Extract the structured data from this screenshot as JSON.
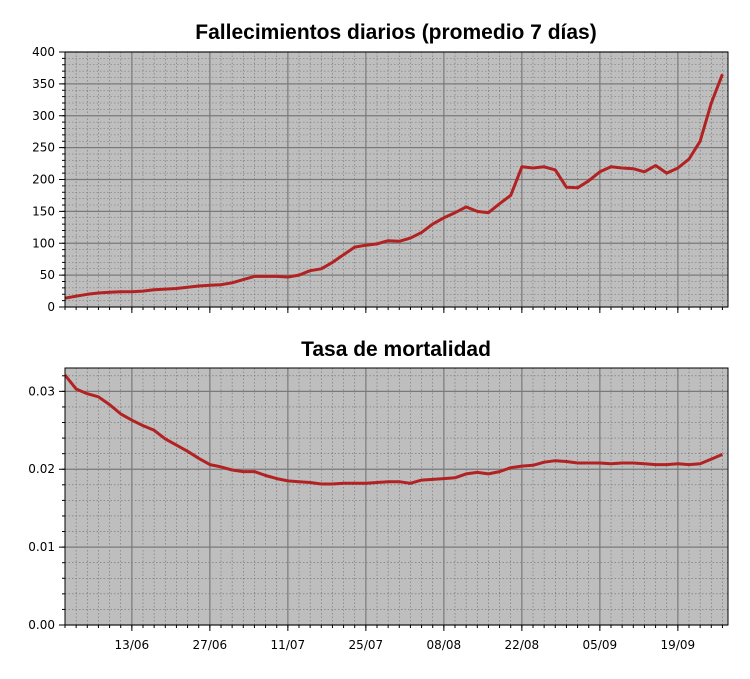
{
  "chart_data": [
    {
      "type": "line",
      "title": "Fallecimientos diarios (promedio 7 días)",
      "xlabel": "",
      "ylabel": "",
      "ylim": [
        0,
        400
      ],
      "yticks": [
        "0",
        "50",
        "100",
        "150",
        "200",
        "250",
        "300",
        "350",
        "400"
      ],
      "xticks": [],
      "grid": true,
      "color": "#b22222",
      "background": "#bebebe",
      "series": [
        {
          "x": [
            0,
            2,
            4,
            6,
            8,
            10,
            12,
            14,
            16,
            18,
            20,
            22,
            24,
            26,
            28,
            30,
            32,
            34,
            36,
            38,
            40,
            42,
            44,
            46,
            48,
            50,
            52,
            54,
            56,
            58,
            60,
            62,
            64,
            66,
            68,
            70,
            72,
            74,
            76,
            78,
            80,
            82,
            84,
            86,
            88,
            90,
            92,
            94,
            96,
            98,
            100,
            102,
            104,
            106,
            108,
            110,
            112,
            114,
            116,
            118
          ],
          "values": [
            14,
            17,
            20,
            22,
            23,
            24,
            24,
            25,
            27,
            28,
            29,
            31,
            33,
            34,
            35,
            38,
            43,
            48,
            48,
            48,
            47,
            50,
            57,
            60,
            70,
            82,
            94,
            97,
            99,
            104,
            103,
            108,
            117,
            130,
            140,
            148,
            157,
            150,
            148,
            162,
            175,
            220,
            218,
            220,
            215,
            188,
            187,
            198,
            212,
            220,
            218,
            217,
            212,
            222,
            210,
            218,
            232,
            260,
            320,
            365
          ]
        }
      ]
    },
    {
      "type": "line",
      "title": "Tasa de mortalidad",
      "xlabel": "",
      "ylabel": "",
      "ylim": [
        0,
        0.033
      ],
      "yticks": [
        "0.00",
        "0.01",
        "0.02",
        "0.03"
      ],
      "xticks": [
        "13/06",
        "27/06",
        "11/07",
        "25/07",
        "08/08",
        "22/08",
        "05/09",
        "19/09"
      ],
      "grid": true,
      "color": "#b22222",
      "background": "#bebebe",
      "series": [
        {
          "x": [
            0,
            2,
            4,
            6,
            8,
            10,
            12,
            14,
            16,
            18,
            20,
            22,
            24,
            26,
            28,
            30,
            32,
            34,
            36,
            38,
            40,
            42,
            44,
            46,
            48,
            50,
            52,
            54,
            56,
            58,
            60,
            62,
            64,
            66,
            68,
            70,
            72,
            74,
            76,
            78,
            80,
            82,
            84,
            86,
            88,
            90,
            92,
            94,
            96,
            98,
            100,
            102,
            104,
            106,
            108,
            110,
            112,
            114,
            116,
            118
          ],
          "values": [
            0.0321,
            0.0303,
            0.0297,
            0.0293,
            0.0283,
            0.0271,
            0.0263,
            0.0256,
            0.025,
            0.0239,
            0.0231,
            0.0223,
            0.0214,
            0.0206,
            0.0203,
            0.0199,
            0.0197,
            0.0197,
            0.0192,
            0.0188,
            0.0185,
            0.0184,
            0.0183,
            0.0181,
            0.0181,
            0.0182,
            0.0182,
            0.0182,
            0.0183,
            0.0184,
            0.0184,
            0.0182,
            0.0186,
            0.0187,
            0.0188,
            0.0189,
            0.0194,
            0.0196,
            0.0194,
            0.0197,
            0.0202,
            0.0204,
            0.0205,
            0.0209,
            0.0211,
            0.021,
            0.0208,
            0.0208,
            0.0208,
            0.0207,
            0.0208,
            0.0208,
            0.0207,
            0.0206,
            0.0206,
            0.0207,
            0.0206,
            0.0207,
            0.0213,
            0.0219
          ]
        }
      ]
    }
  ]
}
